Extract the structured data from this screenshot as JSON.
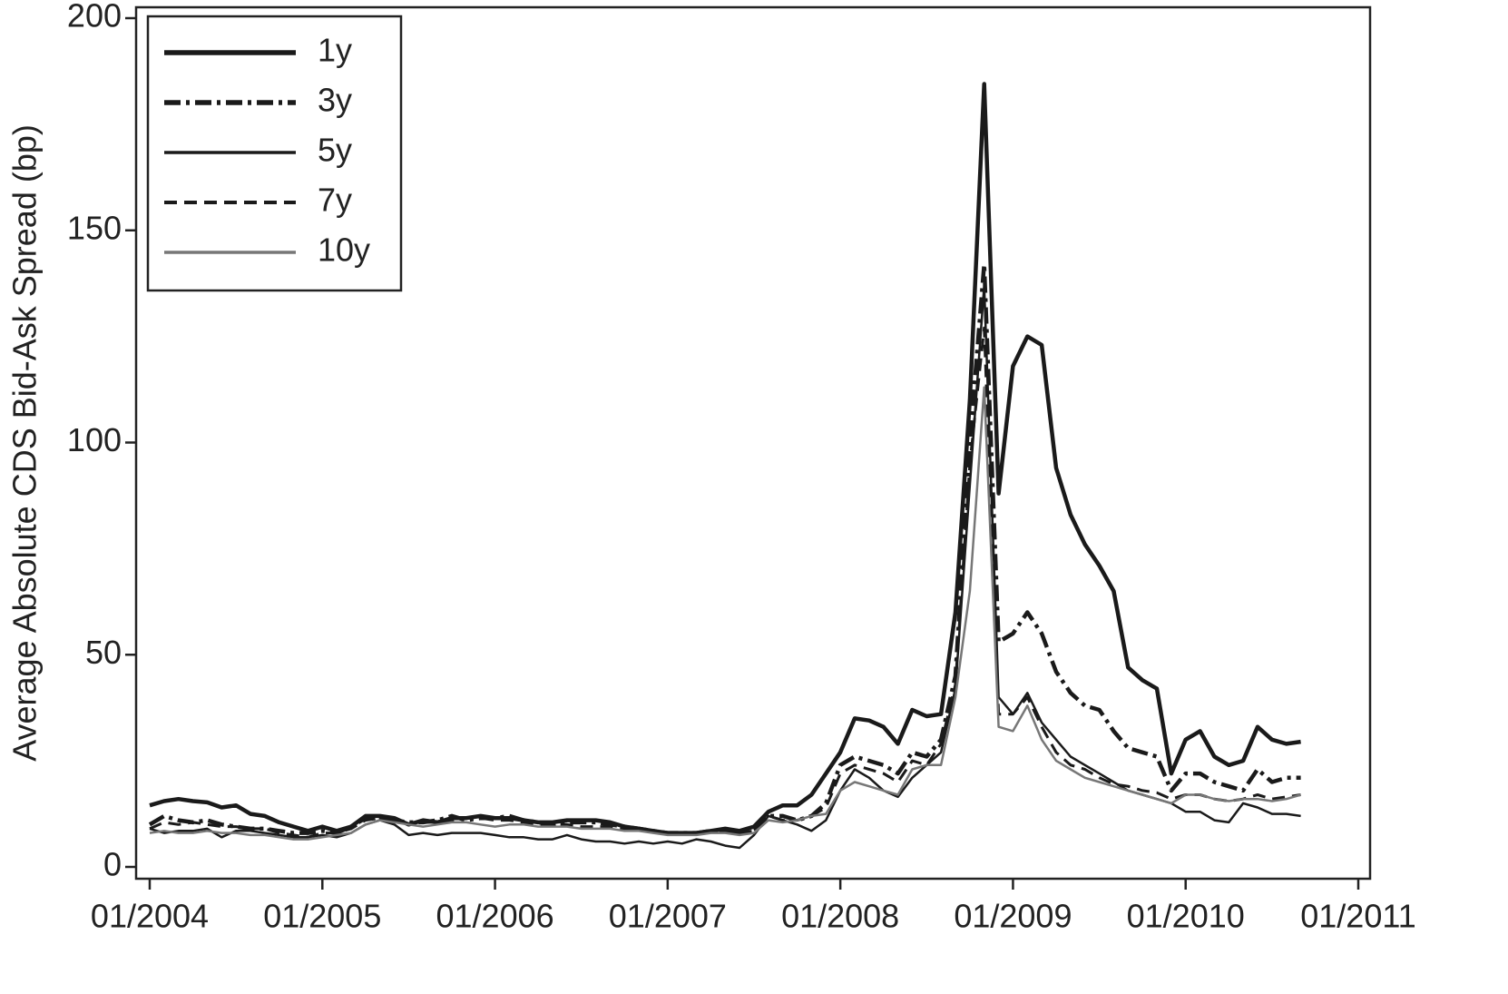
{
  "chart_data": {
    "type": "line",
    "ylabel": "Average Absolute CDS Bid-Ask Spread (bp)",
    "x": [
      "01/2004",
      "02/2004",
      "03/2004",
      "04/2004",
      "05/2004",
      "06/2004",
      "07/2004",
      "08/2004",
      "09/2004",
      "10/2004",
      "11/2004",
      "12/2004",
      "01/2005",
      "02/2005",
      "03/2005",
      "04/2005",
      "05/2005",
      "06/2005",
      "07/2005",
      "08/2005",
      "09/2005",
      "10/2005",
      "11/2005",
      "12/2005",
      "01/2006",
      "02/2006",
      "03/2006",
      "04/2006",
      "05/2006",
      "06/2006",
      "07/2006",
      "08/2006",
      "09/2006",
      "10/2006",
      "11/2006",
      "12/2006",
      "01/2007",
      "02/2007",
      "03/2007",
      "04/2007",
      "05/2007",
      "06/2007",
      "07/2007",
      "08/2007",
      "09/2007",
      "10/2007",
      "11/2007",
      "12/2007",
      "01/2008",
      "02/2008",
      "03/2008",
      "04/2008",
      "05/2008",
      "06/2008",
      "07/2008",
      "08/2008",
      "09/2008",
      "10/2008",
      "11/2008",
      "12/2008",
      "01/2009",
      "02/2009",
      "03/2009",
      "04/2009",
      "05/2009",
      "06/2009",
      "07/2009",
      "08/2009",
      "09/2009",
      "10/2009",
      "11/2009",
      "12/2009",
      "01/2010",
      "02/2010",
      "03/2010",
      "04/2010",
      "05/2010",
      "06/2010",
      "07/2010",
      "08/2010",
      "09/2010"
    ],
    "xlim": [
      "01/2004",
      "01/2011"
    ],
    "xticks": [
      "01/2004",
      "01/2005",
      "01/2006",
      "01/2007",
      "01/2008",
      "01/2009",
      "01/2010",
      "01/2011"
    ],
    "ylim": [
      0,
      200
    ],
    "yticks": [
      0,
      50,
      100,
      150,
      200
    ],
    "legend": "upper left",
    "series": [
      {
        "name": "1y",
        "color": "#1a1a1a",
        "linestyle": "thick",
        "values": [
          14.5,
          15.5,
          16,
          15.5,
          15.2,
          14,
          14.5,
          12.5,
          12,
          10.5,
          9.5,
          8.5,
          9.5,
          8.5,
          9.5,
          12,
          12,
          11.5,
          10,
          11,
          10.5,
          11.5,
          11.5,
          12,
          11.5,
          11.5,
          11,
          10.5,
          10.5,
          11,
          11,
          11,
          10.5,
          9.5,
          9,
          8.5,
          8,
          8,
          8,
          8.5,
          9,
          8.5,
          9.5,
          13,
          14.5,
          14.5,
          17,
          22,
          27,
          35,
          34.5,
          33,
          29,
          37,
          35.5,
          36,
          60,
          110,
          184.5,
          88,
          118,
          125,
          123,
          94,
          83,
          76,
          71,
          65,
          47,
          44,
          42,
          22,
          30,
          32,
          26,
          24,
          25,
          33,
          30,
          29,
          29.5
        ]
      },
      {
        "name": "3y",
        "color": "#1a1a1a",
        "linestyle": "thick-dashdot",
        "values": [
          10,
          12,
          11,
          10.5,
          11,
          10,
          9.5,
          9,
          9,
          8.5,
          8,
          8,
          8.5,
          8,
          9.5,
          11.5,
          11.5,
          11,
          10.5,
          10.5,
          11,
          12,
          11,
          11.5,
          11.5,
          12,
          11,
          10.5,
          10,
          10.5,
          10.5,
          10.5,
          10,
          9.5,
          9,
          8.5,
          8,
          8,
          8,
          8.5,
          8.5,
          8,
          9,
          12,
          12,
          11,
          12,
          15,
          24,
          26,
          25,
          24,
          22,
          27,
          26,
          30,
          45,
          100,
          142,
          53,
          55,
          60,
          55,
          46,
          41,
          38,
          37,
          32,
          28,
          27,
          26,
          18,
          22,
          22,
          20,
          19,
          18,
          23,
          20,
          21,
          21
        ]
      },
      {
        "name": "5y",
        "color": "#1a1a1a",
        "linestyle": "solid",
        "values": [
          9,
          8,
          8.5,
          8.5,
          9,
          7,
          8.5,
          8.5,
          8,
          7.5,
          7,
          7,
          7.5,
          7,
          8,
          10,
          11,
          10,
          7.5,
          8,
          7.5,
          8,
          8,
          8,
          7.5,
          7,
          7,
          6.5,
          6.5,
          7.5,
          6.5,
          6,
          6,
          5.5,
          6,
          5.5,
          6,
          5.5,
          6.5,
          6,
          5,
          4.5,
          7.5,
          12,
          11,
          10,
          8.5,
          11,
          18,
          23,
          21,
          18,
          16.5,
          21,
          24,
          27,
          42,
          90,
          137,
          40,
          36,
          41,
          34,
          30,
          26,
          24,
          22,
          20,
          18,
          17,
          16,
          15,
          13,
          13,
          11,
          10.5,
          15,
          14,
          12.5,
          12.5,
          12
        ]
      },
      {
        "name": "7y",
        "color": "#1a1a1a",
        "linestyle": "dashed",
        "values": [
          9,
          10.5,
          10,
          10.5,
          10,
          9.5,
          9.5,
          9,
          9,
          8,
          7.5,
          7,
          8,
          8,
          9,
          11,
          11.5,
          11,
          10,
          10.5,
          10.5,
          11,
          11.5,
          11.5,
          11,
          11,
          10.5,
          10,
          10,
          10,
          9.5,
          9.5,
          9.5,
          9,
          9,
          8.5,
          8,
          8,
          8,
          8.5,
          8.5,
          8,
          8.5,
          12,
          11,
          11,
          12,
          14,
          22,
          24,
          23,
          22,
          20,
          25,
          24,
          29,
          43,
          95,
          127,
          36,
          36,
          40,
          33,
          27,
          24,
          23,
          21,
          19.5,
          19,
          18,
          17.5,
          16,
          17,
          17,
          16,
          15.5,
          16,
          17,
          16,
          16.5,
          17
        ]
      },
      {
        "name": "10y",
        "color": "#777777",
        "linestyle": "solid",
        "values": [
          8,
          8.5,
          8,
          8,
          8.5,
          8,
          8,
          7.5,
          7.5,
          7,
          6.5,
          6.5,
          7,
          7.5,
          8,
          10,
          11,
          10.5,
          10,
          9.5,
          10,
          10.5,
          10.5,
          10,
          9.5,
          10,
          10,
          9.5,
          9.5,
          9.5,
          9,
          9,
          9,
          8.5,
          8.5,
          8,
          7.5,
          7.5,
          7.5,
          8,
          8,
          7.5,
          8,
          11,
          10.5,
          11,
          12,
          12.5,
          18,
          20,
          19,
          18,
          17,
          23,
          24,
          24,
          40,
          65,
          113,
          33,
          32,
          38,
          30,
          25,
          23,
          21,
          20,
          19,
          18,
          17,
          16,
          15,
          17,
          17,
          16,
          15.5,
          16,
          16,
          15.5,
          16,
          17
        ]
      }
    ]
  }
}
